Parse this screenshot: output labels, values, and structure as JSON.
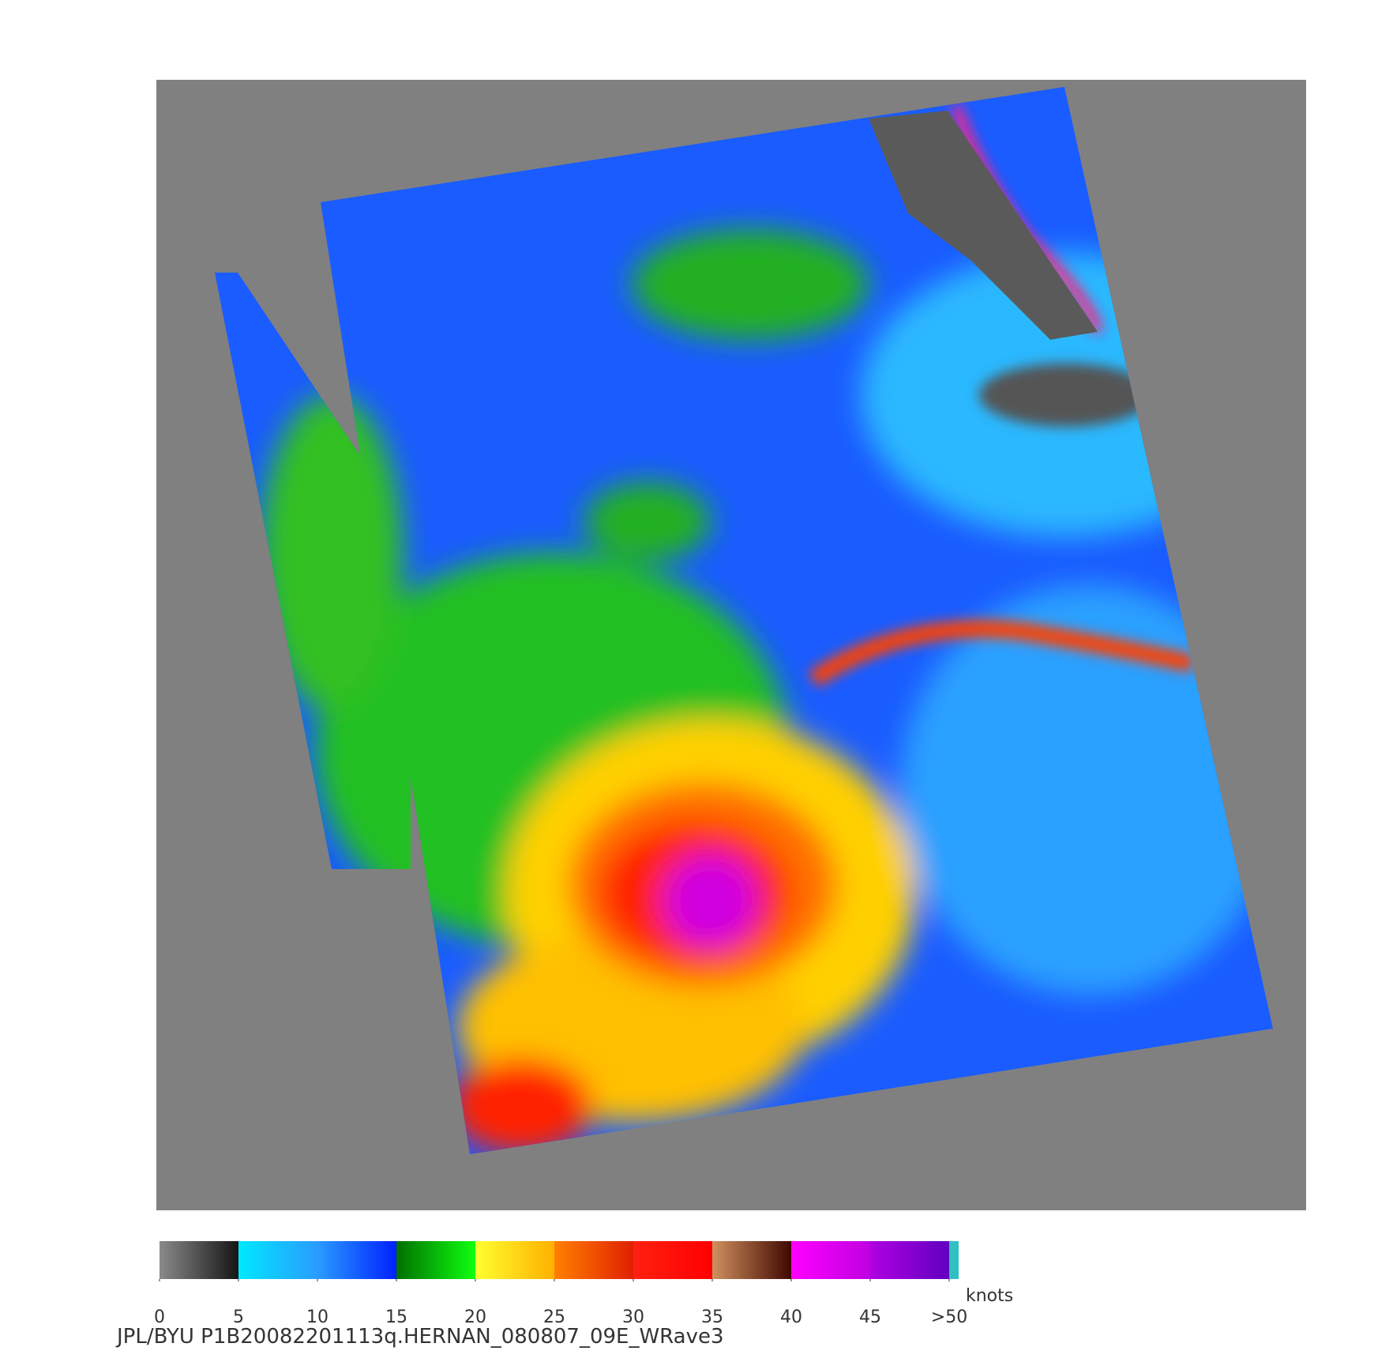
{
  "colorbar": {
    "unit": "knots",
    "lim": [
      0,
      50
    ],
    "ticks": [
      0,
      5,
      10,
      15,
      20,
      25,
      30,
      35,
      40,
      45,
      {
        "value": 50,
        "label": ">50"
      }
    ],
    "colors": [
      [
        "#8a8a8a",
        "#151515"
      ],
      [
        "#00e8ff",
        "#2a9cff"
      ],
      [
        "#2a9cff",
        "#0020ff"
      ],
      [
        "#007000",
        "#10ff10"
      ],
      [
        "#ffff30",
        "#ffb000"
      ],
      [
        "#ff8000",
        "#e02000"
      ],
      [
        "#ff2010",
        "#ff0000"
      ],
      [
        "#d09060",
        "#400800"
      ],
      [
        "#ff00ff",
        "#c000e0"
      ],
      [
        "#b000e0",
        "#6000c0"
      ]
    ]
  },
  "caption": "JPL/BYU  P1B20082201113q.HERNAN_080807_09E_WRave3"
}
